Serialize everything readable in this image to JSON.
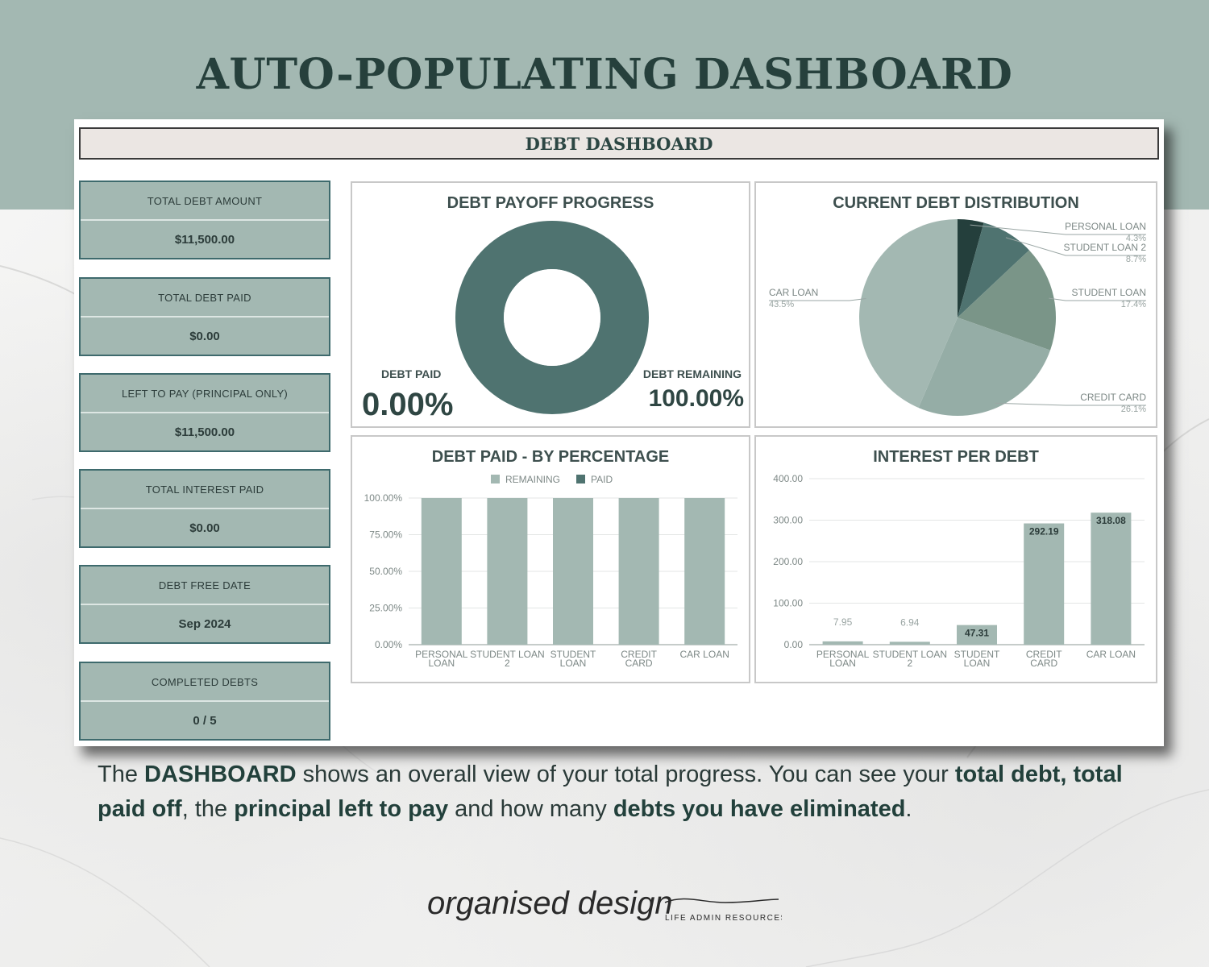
{
  "headline": "AUTO-POPULATING DASHBOARD",
  "dashboard": {
    "title": "DEBT DASHBOARD",
    "stats": [
      {
        "label": "TOTAL DEBT AMOUNT",
        "value": "$11,500.00"
      },
      {
        "label": "TOTAL DEBT PAID",
        "value": "$0.00"
      },
      {
        "label": "LEFT TO PAY (PRINCIPAL ONLY)",
        "value": "$11,500.00"
      },
      {
        "label": "TOTAL INTEREST PAID",
        "value": "$0.00"
      },
      {
        "label": "DEBT FREE DATE",
        "value": "Sep 2024"
      },
      {
        "label": "COMPLETED DEBTS",
        "value": "0 / 5"
      }
    ]
  },
  "caption": {
    "p1": "The ",
    "b1": "DASHBOARD",
    "p2": " shows an overall view of your total progress. You can see your ",
    "b2": "total debt,",
    "p3": " ",
    "b3": "total paid off",
    "p4": ", the ",
    "b4": "principal left to pay",
    "p5": " and how many ",
    "b5": "debts you have eliminated",
    "p6": "."
  },
  "logo": {
    "script": "organised design",
    "tagline": "LIFE ADMIN RESOURCES"
  },
  "colors": {
    "band": "#a3b8b2",
    "dark_teal": "#4f7370",
    "sage": "#a3b8b2",
    "title_text": "#26403c"
  },
  "chart_data": [
    {
      "type": "pie",
      "title": "DEBT PAYOFF PROGRESS",
      "donut": true,
      "categories": [
        "DEBT PAID",
        "DEBT REMAINING"
      ],
      "values": [
        0,
        100
      ],
      "labels": [
        "0.00%",
        "100.00%"
      ],
      "colors": [
        "#a3b8b2",
        "#4f7370"
      ]
    },
    {
      "type": "pie",
      "title": "CURRENT DEBT DISTRIBUTION",
      "categories": [
        "PERSONAL LOAN",
        "STUDENT LOAN 2",
        "STUDENT LOAN",
        "CREDIT CARD",
        "CAR LOAN"
      ],
      "values": [
        4.3,
        8.7,
        17.4,
        26.1,
        43.5
      ],
      "labels": [
        "4.3%",
        "8.7%",
        "17.4%",
        "26.1%",
        "43.5%"
      ],
      "colors": [
        "#243f3c",
        "#4f7370",
        "#7a9588",
        "#95ada6",
        "#a3b8b2"
      ]
    },
    {
      "type": "bar",
      "title": "DEBT PAID - BY PERCENTAGE",
      "stacked": true,
      "legend": "top",
      "categories": [
        "PERSONAL LOAN",
        "STUDENT LOAN 2",
        "STUDENT LOAN",
        "CREDIT CARD",
        "CAR LOAN"
      ],
      "series": [
        {
          "name": "REMAINING",
          "values": [
            100,
            100,
            100,
            100,
            100
          ],
          "color": "#a3b8b2"
        },
        {
          "name": "PAID",
          "values": [
            0,
            0,
            0,
            0,
            0
          ],
          "color": "#4f7370"
        }
      ],
      "yticks": [
        "0.00%",
        "25.00%",
        "50.00%",
        "75.00%",
        "100.00%"
      ],
      "ylim": [
        0,
        100
      ]
    },
    {
      "type": "bar",
      "title": "INTEREST PER DEBT",
      "categories": [
        "PERSONAL LOAN",
        "STUDENT LOAN 2",
        "STUDENT LOAN",
        "CREDIT CARD",
        "CAR LOAN"
      ],
      "values": [
        7.95,
        6.94,
        47.31,
        292.19,
        318.08
      ],
      "value_labels": [
        "7.95",
        "6.94",
        "47.31",
        "292.19",
        "318.08"
      ],
      "yticks": [
        "0.00",
        "100.00",
        "200.00",
        "300.00",
        "400.00"
      ],
      "ylim": [
        0,
        400
      ],
      "color": "#a3b8b2"
    }
  ]
}
